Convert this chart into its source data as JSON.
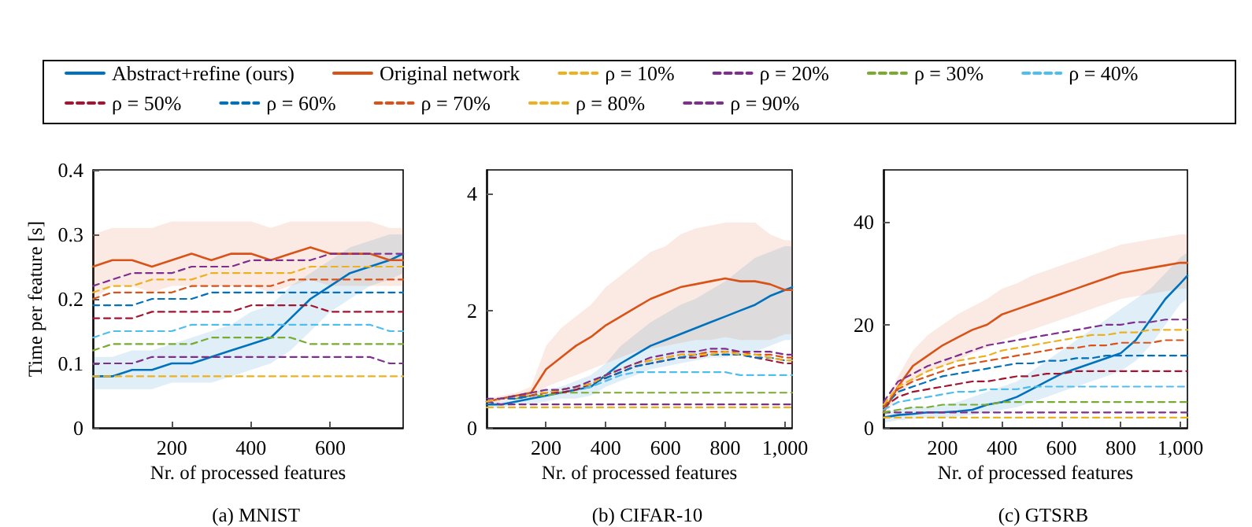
{
  "chart_data": [
    {
      "type": "line",
      "title": "(a) MNIST",
      "xlabel": "Nr. of processed features",
      "ylabel": "Time per feature [s]",
      "xlim": [
        1,
        784
      ],
      "xticks": [
        200,
        400,
        600
      ],
      "ylim": [
        0,
        0.4
      ],
      "yticks": [
        0,
        0.1,
        0.2,
        0.3,
        0.4
      ],
      "grid": false,
      "legend": "top",
      "marker": "none",
      "x": [
        1,
        50,
        100,
        150,
        200,
        250,
        300,
        350,
        400,
        450,
        500,
        550,
        600,
        650,
        700,
        750,
        784
      ],
      "series": [
        {
          "name": "Abstract+refine (ours)",
          "color": "#0072bd",
          "line_style": "solid",
          "values": [
            0.08,
            0.08,
            0.09,
            0.09,
            0.1,
            0.1,
            0.11,
            0.12,
            0.13,
            0.14,
            0.17,
            0.2,
            0.22,
            0.24,
            0.25,
            0.26,
            0.27
          ],
          "lower": [
            0.06,
            0.06,
            0.06,
            0.06,
            0.07,
            0.07,
            0.07,
            0.08,
            0.09,
            0.1,
            0.12,
            0.15,
            0.18,
            0.2,
            0.22,
            0.23,
            0.24
          ],
          "upper": [
            0.11,
            0.11,
            0.12,
            0.12,
            0.13,
            0.14,
            0.15,
            0.16,
            0.18,
            0.19,
            0.22,
            0.24,
            0.26,
            0.28,
            0.29,
            0.3,
            0.3
          ]
        },
        {
          "name": "Original network",
          "color": "#d95319",
          "line_style": "solid",
          "values": [
            0.25,
            0.26,
            0.26,
            0.25,
            0.26,
            0.27,
            0.26,
            0.27,
            0.27,
            0.26,
            0.27,
            0.28,
            0.27,
            0.27,
            0.27,
            0.26,
            0.26
          ],
          "lower": [
            0.2,
            0.22,
            0.22,
            0.21,
            0.22,
            0.22,
            0.22,
            0.22,
            0.22,
            0.21,
            0.22,
            0.23,
            0.22,
            0.22,
            0.22,
            0.22,
            0.22
          ],
          "upper": [
            0.3,
            0.31,
            0.31,
            0.31,
            0.32,
            0.32,
            0.32,
            0.32,
            0.32,
            0.31,
            0.32,
            0.32,
            0.32,
            0.32,
            0.32,
            0.31,
            0.31
          ]
        },
        {
          "name": "ρ = 10%",
          "color": "#edb120",
          "line_style": "dashed",
          "values": [
            0.08,
            0.08,
            0.08,
            0.08,
            0.08,
            0.08,
            0.08,
            0.08,
            0.08,
            0.08,
            0.08,
            0.08,
            0.08,
            0.08,
            0.08,
            0.08,
            0.08
          ]
        },
        {
          "name": "ρ = 20%",
          "color": "#7e2f8e",
          "line_style": "dashed",
          "values": [
            0.1,
            0.1,
            0.1,
            0.11,
            0.11,
            0.11,
            0.11,
            0.11,
            0.11,
            0.11,
            0.11,
            0.11,
            0.11,
            0.11,
            0.11,
            0.1,
            0.1
          ]
        },
        {
          "name": "ρ = 30%",
          "color": "#77ac30",
          "line_style": "dashed",
          "values": [
            0.12,
            0.13,
            0.13,
            0.13,
            0.13,
            0.13,
            0.14,
            0.14,
            0.14,
            0.14,
            0.14,
            0.13,
            0.13,
            0.13,
            0.13,
            0.13,
            0.13
          ]
        },
        {
          "name": "ρ = 40%",
          "color": "#4dbeee",
          "line_style": "dashed",
          "values": [
            0.14,
            0.15,
            0.15,
            0.15,
            0.15,
            0.16,
            0.16,
            0.16,
            0.16,
            0.16,
            0.16,
            0.16,
            0.16,
            0.16,
            0.16,
            0.15,
            0.15
          ]
        },
        {
          "name": "ρ = 50%",
          "color": "#a2142f",
          "line_style": "dashed",
          "values": [
            0.17,
            0.17,
            0.17,
            0.18,
            0.18,
            0.18,
            0.18,
            0.18,
            0.19,
            0.19,
            0.19,
            0.19,
            0.18,
            0.18,
            0.18,
            0.18,
            0.18
          ]
        },
        {
          "name": "ρ = 60%",
          "color": "#0072bd",
          "line_style": "dashed",
          "values": [
            0.19,
            0.19,
            0.19,
            0.2,
            0.2,
            0.2,
            0.21,
            0.21,
            0.21,
            0.21,
            0.21,
            0.21,
            0.21,
            0.21,
            0.21,
            0.21,
            0.21
          ]
        },
        {
          "name": "ρ = 70%",
          "color": "#d95319",
          "line_style": "dashed",
          "values": [
            0.2,
            0.21,
            0.21,
            0.21,
            0.21,
            0.22,
            0.22,
            0.22,
            0.22,
            0.22,
            0.23,
            0.23,
            0.23,
            0.23,
            0.23,
            0.23,
            0.23
          ]
        },
        {
          "name": "ρ = 80%",
          "color": "#edb120",
          "line_style": "dashed",
          "values": [
            0.21,
            0.22,
            0.22,
            0.23,
            0.23,
            0.23,
            0.24,
            0.24,
            0.24,
            0.24,
            0.24,
            0.25,
            0.25,
            0.25,
            0.25,
            0.25,
            0.25
          ]
        },
        {
          "name": "ρ = 90%",
          "color": "#7e2f8e",
          "line_style": "dashed",
          "values": [
            0.22,
            0.23,
            0.24,
            0.24,
            0.24,
            0.25,
            0.25,
            0.25,
            0.26,
            0.26,
            0.26,
            0.26,
            0.27,
            0.27,
            0.27,
            0.27,
            0.27
          ]
        }
      ]
    },
    {
      "type": "line",
      "title": "(b) CIFAR-10",
      "xlabel": "Nr. of processed features",
      "xlim": [
        1,
        1024
      ],
      "xticks": [
        200,
        400,
        600,
        800,
        {
          "value": 1000,
          "label": "1,000"
        }
      ],
      "ylim": [
        0,
        4.4
      ],
      "yticks": [
        0,
        2,
        4
      ],
      "grid": false,
      "legend": false,
      "marker": "none",
      "x": [
        1,
        50,
        100,
        150,
        200,
        250,
        300,
        350,
        400,
        450,
        500,
        550,
        600,
        650,
        700,
        750,
        800,
        850,
        900,
        950,
        1000,
        1024
      ],
      "series": [
        {
          "color": "#0072bd",
          "line_style": "solid",
          "values": [
            0.4,
            0.4,
            0.45,
            0.5,
            0.55,
            0.6,
            0.65,
            0.7,
            0.9,
            1.1,
            1.25,
            1.4,
            1.5,
            1.6,
            1.7,
            1.8,
            1.9,
            2.0,
            2.1,
            2.25,
            2.35,
            2.4
          ],
          "lower": [
            0.35,
            0.35,
            0.4,
            0.4,
            0.45,
            0.5,
            0.5,
            0.55,
            0.7,
            0.8,
            0.9,
            1.0,
            1.05,
            1.1,
            1.15,
            1.2,
            1.2,
            1.25,
            1.3,
            1.4,
            1.5,
            1.5
          ],
          "upper": [
            0.45,
            0.45,
            0.5,
            0.6,
            0.65,
            0.7,
            0.8,
            0.9,
            1.1,
            1.4,
            1.6,
            1.8,
            1.95,
            2.1,
            2.2,
            2.35,
            2.5,
            2.7,
            2.9,
            3.0,
            3.1,
            3.1
          ]
        },
        {
          "color": "#d95319",
          "line_style": "solid",
          "values": [
            0.45,
            0.5,
            0.55,
            0.6,
            1.0,
            1.2,
            1.4,
            1.55,
            1.75,
            1.9,
            2.05,
            2.2,
            2.3,
            2.4,
            2.45,
            2.5,
            2.55,
            2.5,
            2.5,
            2.45,
            2.35,
            2.35
          ],
          "lower": [
            0.4,
            0.45,
            0.5,
            0.5,
            0.7,
            0.8,
            0.9,
            1.0,
            1.1,
            1.2,
            1.3,
            1.35,
            1.4,
            1.45,
            1.5,
            1.5,
            1.55,
            1.5,
            1.5,
            1.5,
            1.6,
            1.6
          ],
          "upper": [
            0.5,
            0.55,
            0.6,
            0.7,
            1.4,
            1.7,
            1.9,
            2.1,
            2.4,
            2.6,
            2.8,
            3.0,
            3.1,
            3.3,
            3.4,
            3.45,
            3.5,
            3.5,
            3.5,
            3.3,
            3.2,
            3.2
          ]
        },
        {
          "color": "#edb120",
          "line_style": "dashed",
          "values": [
            0.35,
            0.35,
            0.35,
            0.35,
            0.35,
            0.35,
            0.35,
            0.35,
            0.35,
            0.35,
            0.35,
            0.35,
            0.35,
            0.35,
            0.35,
            0.35,
            0.35,
            0.35,
            0.35,
            0.35,
            0.35,
            0.35
          ]
        },
        {
          "color": "#7e2f8e",
          "line_style": "dashed",
          "values": [
            0.45,
            0.4,
            0.4,
            0.4,
            0.4,
            0.4,
            0.4,
            0.4,
            0.4,
            0.4,
            0.4,
            0.4,
            0.4,
            0.4,
            0.4,
            0.4,
            0.4,
            0.4,
            0.4,
            0.4,
            0.4,
            0.4
          ]
        },
        {
          "color": "#77ac30",
          "line_style": "dashed",
          "values": [
            null,
            null,
            0.5,
            0.55,
            0.55,
            0.6,
            0.6,
            0.6,
            0.6,
            0.6,
            0.6,
            0.6,
            0.6,
            0.6,
            0.6,
            0.6,
            0.6,
            0.6,
            0.6,
            0.6,
            0.6,
            0.6
          ]
        },
        {
          "color": "#4dbeee",
          "line_style": "dashed",
          "values": [
            0.45,
            0.5,
            0.5,
            0.55,
            0.6,
            0.6,
            0.65,
            0.7,
            0.8,
            0.9,
            0.95,
            0.95,
            0.95,
            0.95,
            0.95,
            0.95,
            0.95,
            0.9,
            0.9,
            0.9,
            0.9,
            0.9
          ]
        },
        {
          "color": "#a2142f",
          "line_style": "dashed",
          "values": [
            0.45,
            0.5,
            0.5,
            0.55,
            0.6,
            0.6,
            0.65,
            0.75,
            0.85,
            0.95,
            1.05,
            1.1,
            1.15,
            1.2,
            1.2,
            1.25,
            1.25,
            1.25,
            1.2,
            1.15,
            1.1,
            1.1
          ]
        },
        {
          "color": "#0072bd",
          "line_style": "dashed",
          "values": [
            0.45,
            0.5,
            0.5,
            0.55,
            0.6,
            0.65,
            0.7,
            0.75,
            0.85,
            0.95,
            1.05,
            1.1,
            1.15,
            1.2,
            1.25,
            1.25,
            1.25,
            1.25,
            1.2,
            1.2,
            1.15,
            1.15
          ]
        },
        {
          "color": "#d95319",
          "line_style": "dashed",
          "values": [
            0.45,
            0.5,
            0.55,
            0.55,
            0.6,
            0.65,
            0.7,
            0.75,
            0.9,
            1.0,
            1.1,
            1.15,
            1.2,
            1.25,
            1.25,
            1.3,
            1.3,
            1.3,
            1.25,
            1.25,
            1.2,
            1.2
          ]
        },
        {
          "color": "#edb120",
          "line_style": "dashed",
          "values": [
            0.45,
            0.5,
            0.55,
            0.6,
            0.6,
            0.65,
            0.7,
            0.75,
            0.9,
            1.0,
            1.1,
            1.15,
            1.2,
            1.25,
            1.25,
            1.25,
            1.3,
            1.25,
            1.25,
            1.2,
            1.15,
            1.15
          ]
        },
        {
          "color": "#7e2f8e",
          "line_style": "dashed",
          "values": [
            0.5,
            0.5,
            0.55,
            0.6,
            0.65,
            0.65,
            0.7,
            0.8,
            0.9,
            1.0,
            1.1,
            1.2,
            1.25,
            1.3,
            1.3,
            1.35,
            1.35,
            1.3,
            1.3,
            1.3,
            1.25,
            1.25
          ]
        }
      ]
    },
    {
      "type": "line",
      "title": "(c) GTSRB",
      "xlabel": "Nr. of processed features",
      "xlim": [
        1,
        1024
      ],
      "xticks": [
        200,
        400,
        600,
        800,
        {
          "value": 1000,
          "label": "1,000"
        }
      ],
      "ylim": [
        0,
        50
      ],
      "yticks": [
        0,
        20,
        40
      ],
      "grid": false,
      "legend": false,
      "marker": "none",
      "x": [
        1,
        50,
        100,
        150,
        200,
        250,
        300,
        350,
        400,
        450,
        500,
        550,
        600,
        650,
        700,
        750,
        800,
        850,
        900,
        950,
        1000,
        1024
      ],
      "series": [
        {
          "color": "#0072bd",
          "line_style": "solid",
          "values": [
            2,
            2.5,
            2.7,
            3,
            3,
            3.2,
            3.5,
            4.5,
            5,
            6,
            7.5,
            9,
            10.5,
            11.5,
            12.5,
            13.5,
            14.5,
            17,
            21,
            25,
            28,
            29.5
          ],
          "lower": [
            1,
            1.5,
            1.7,
            2,
            2,
            2.2,
            2.5,
            3,
            3.5,
            4,
            5,
            6,
            7,
            8,
            9,
            10,
            11,
            13,
            16,
            20,
            24,
            25
          ],
          "upper": [
            3,
            3.5,
            4,
            4,
            4.5,
            5,
            6,
            7,
            8,
            9,
            11,
            13,
            15,
            17,
            19,
            21,
            23,
            25,
            27,
            30,
            33,
            34
          ]
        },
        {
          "color": "#d95319",
          "line_style": "solid",
          "values": [
            3,
            8,
            12,
            14,
            16,
            17.5,
            19,
            20,
            22,
            23,
            24,
            25,
            26,
            27,
            28,
            29,
            30,
            30.5,
            31,
            31.5,
            32,
            32
          ],
          "lower": [
            2,
            6,
            9,
            11,
            12,
            13,
            14.5,
            15.5,
            17,
            18,
            19,
            20,
            21,
            22,
            23,
            24,
            25,
            25.5,
            26,
            26.5,
            27,
            27
          ],
          "upper": [
            4,
            10,
            15,
            18,
            20,
            22,
            23.5,
            25,
            27,
            28,
            29.5,
            30.5,
            31.5,
            32.5,
            33.5,
            34.5,
            35.5,
            36,
            36.5,
            37,
            37.5,
            37.5
          ]
        },
        {
          "color": "#edb120",
          "line_style": "dashed",
          "values": [
            2,
            2,
            2,
            2,
            2,
            2,
            2,
            2,
            2,
            2,
            2,
            2,
            2,
            2,
            2,
            2,
            2,
            2,
            2,
            2,
            2,
            2
          ]
        },
        {
          "color": "#7e2f8e",
          "line_style": "dashed",
          "values": [
            3,
            3,
            3,
            3,
            3,
            3,
            3,
            3,
            3,
            3,
            3,
            3,
            3,
            3,
            3,
            3,
            3,
            3,
            3,
            3,
            3,
            3
          ]
        },
        {
          "color": "#77ac30",
          "line_style": "dashed",
          "values": [
            3,
            3.5,
            4,
            4,
            4.5,
            4.5,
            4.5,
            4.5,
            5,
            5,
            5,
            5,
            5,
            5,
            5,
            5,
            5,
            5,
            5,
            5,
            5,
            5
          ]
        },
        {
          "color": "#4dbeee",
          "line_style": "dashed",
          "values": [
            3.5,
            5,
            5.5,
            6,
            6.5,
            7,
            7,
            7.5,
            7.5,
            7.5,
            8,
            8,
            8,
            8,
            8,
            8,
            8,
            8,
            8,
            8,
            8,
            8
          ]
        },
        {
          "color": "#a2142f",
          "line_style": "dashed",
          "values": [
            4,
            6,
            7,
            7.5,
            8,
            8.5,
            9,
            9,
            9.5,
            10,
            10,
            10.5,
            10.5,
            11,
            11,
            11,
            11,
            11,
            11,
            11,
            11,
            11
          ]
        },
        {
          "color": "#0072bd",
          "line_style": "dashed",
          "values": [
            4,
            7,
            8,
            9,
            10,
            10.5,
            11,
            11.5,
            12,
            12.5,
            12.5,
            13,
            13,
            13.5,
            13.5,
            14,
            14,
            14,
            14,
            14,
            14,
            14
          ]
        },
        {
          "color": "#d95319",
          "line_style": "dashed",
          "values": [
            4,
            7.5,
            9,
            10,
            11,
            12,
            12.5,
            13,
            13.5,
            14,
            14.5,
            15,
            15.5,
            15.5,
            16,
            16,
            16.5,
            16.5,
            16.5,
            17,
            17,
            17
          ]
        },
        {
          "color": "#edb120",
          "line_style": "dashed",
          "values": [
            4.5,
            8,
            9.5,
            11,
            12,
            13,
            13.5,
            14,
            15,
            15.5,
            16,
            16.5,
            17,
            17.5,
            18,
            18,
            18.5,
            18.5,
            19,
            19,
            19,
            19
          ]
        },
        {
          "color": "#7e2f8e",
          "line_style": "dashed",
          "values": [
            5,
            9,
            10.5,
            12,
            13,
            14,
            15,
            16,
            16.5,
            17,
            17.5,
            18,
            18.5,
            19,
            19.5,
            20,
            20,
            20.5,
            20.5,
            21,
            21,
            21
          ]
        }
      ]
    }
  ]
}
